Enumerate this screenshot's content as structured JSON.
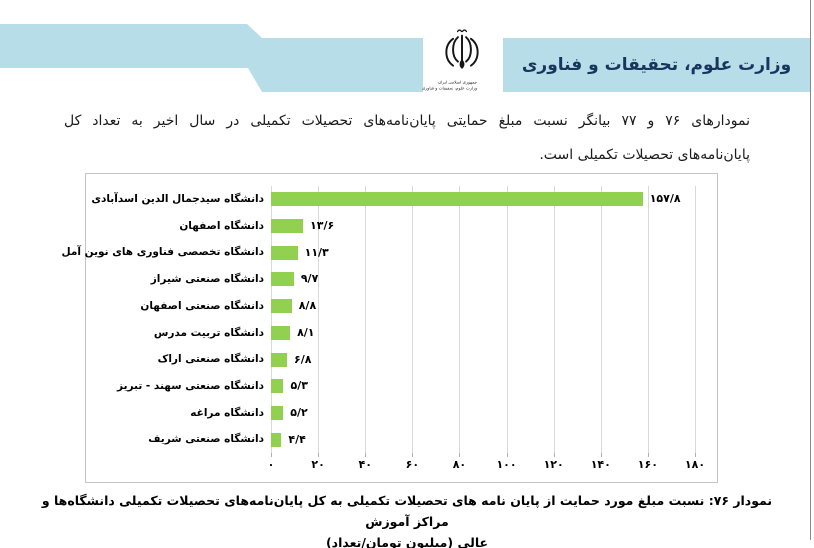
{
  "header": {
    "ministry_title": "وزارت علوم، تحقیقات و فناوری",
    "emblem": {
      "name": "iran-coat-of-arms",
      "line1": "جمهوری اسلامی ایران",
      "line2": "وزارت علوم، تحقیقات و فناوری"
    },
    "banner_color": "#b7dee8",
    "title_color": "#17365d"
  },
  "intro_paragraph": {
    "line1": "نمودارهای ۷۶ و ۷۷ بیانگر نسبت مبلغ حمایتی پایان‌نامه‌های تحصیلات تکمیلی در سال اخیر به تعداد کل",
    "line2": "پایان‌نامه‌های تحصیلات تکمیلی است."
  },
  "chart_data": {
    "type": "bar",
    "orientation": "horizontal",
    "title": "",
    "xlabel": "",
    "ylabel": "",
    "xlim": [
      0,
      180
    ],
    "grid": true,
    "bar_color": "#92d050",
    "gridline_color": "#d9d9d9",
    "categories": [
      "دانشگاه سیدجمال الدین اسدآبادی",
      "دانشگاه اصفهان",
      "دانشگاه تخصصی فناوری های نوین آمل",
      "دانشگاه صنعتی شیراز",
      "دانشگاه صنعتی اصفهان",
      "دانشگاه تربیت مدرس",
      "دانشگاه صنعتی اراک",
      "دانشگاه صنعتی سهند - تبریز",
      "دانشگاه مراغه",
      "دانشگاه صنعتی شریف"
    ],
    "values": [
      157.8,
      13.6,
      11.3,
      9.7,
      8.8,
      8.1,
      6.8,
      5.3,
      5.2,
      4.4
    ],
    "value_labels": [
      "۱۵۷/۸",
      "۱۳/۶",
      "۱۱/۳",
      "۹/۷",
      "۸/۸",
      "۸/۱",
      "۶/۸",
      "۵/۳",
      "۵/۲",
      "۴/۴"
    ],
    "x_ticks": [
      0,
      20,
      40,
      60,
      80,
      100,
      120,
      140,
      160,
      180
    ],
    "x_tick_labels": [
      "۰",
      "۲۰",
      "۴۰",
      "۶۰",
      "۸۰",
      "۱۰۰",
      "۱۲۰",
      "۱۴۰",
      "۱۶۰",
      "۱۸۰"
    ]
  },
  "caption": {
    "line1": "نمودار ۷۶: نسبت مبلغ مورد حمایت از پایان نامه های تحصیلات تکمیلی به کل پایان‌نامه‌های تحصیلات تکمیلی دانشگاه‌ها و مراکز آموزش",
    "line2": "عالی (میلیون تومان/تعداد)"
  }
}
